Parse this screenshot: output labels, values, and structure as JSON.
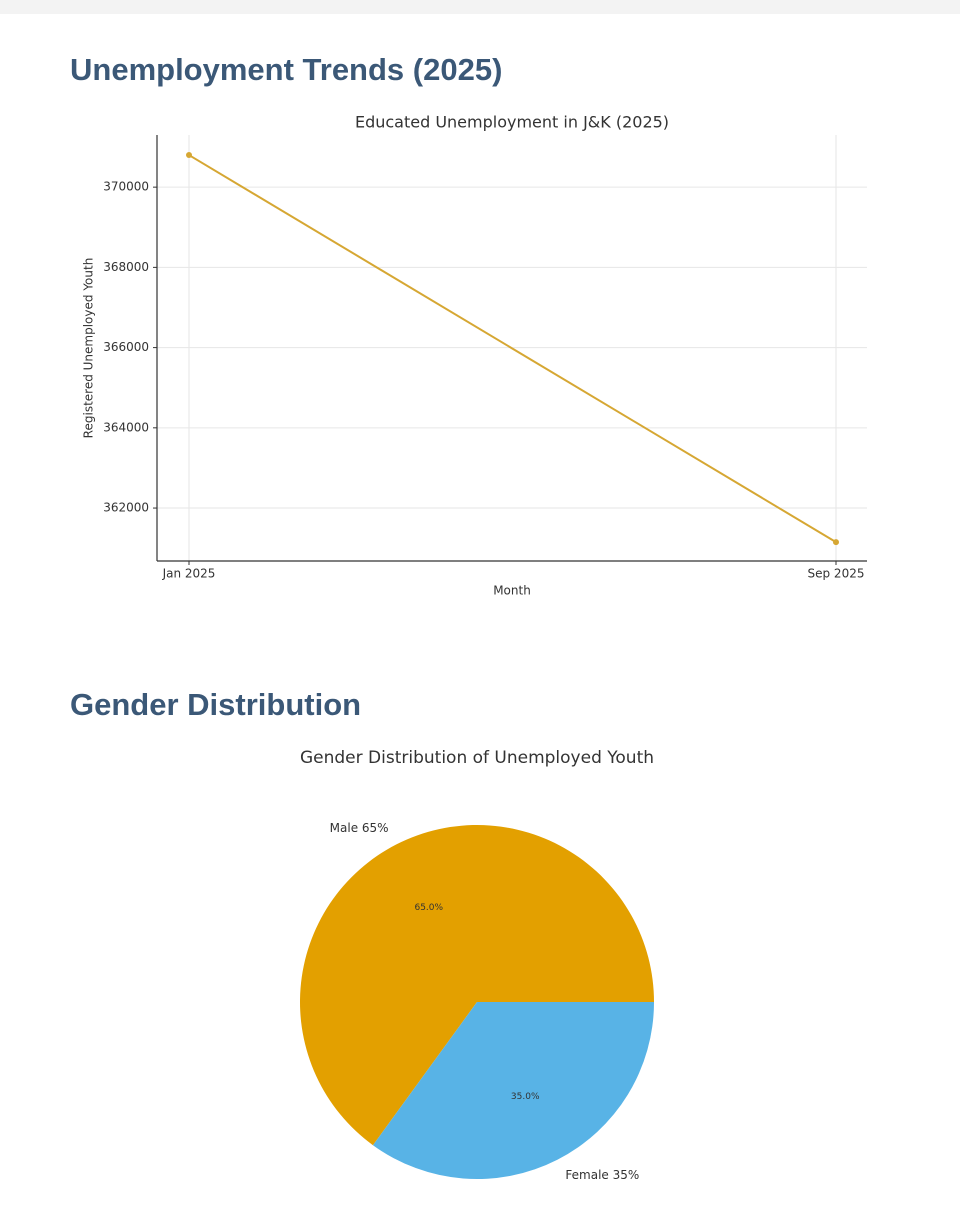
{
  "headings": [
    "Unemployment Trends (2025)",
    "Gender Distribution"
  ],
  "chart_data": [
    {
      "type": "line",
      "title": "Educated Unemployment in J&K (2025)",
      "x_label": "Month",
      "y_label": "Registered Unemployed Youth",
      "categories": [
        "Jan 2025",
        "Sep 2025"
      ],
      "series": [
        {
          "name": "Registered Unemployed Youth",
          "color": "#d6a733",
          "values": [
            370800,
            361150
          ]
        }
      ],
      "ylim": [
        360680,
        371300
      ],
      "yticks": [
        362000,
        364000,
        366000,
        368000,
        370000
      ],
      "grid": true
    },
    {
      "type": "pie",
      "title": "Gender Distribution of Unemployed Youth",
      "categories": [
        "Male 65%",
        "Female 35%"
      ],
      "values": [
        65,
        35
      ],
      "value_labels": [
        "65.0%",
        "35.0%"
      ],
      "colors": [
        "#e3a000",
        "#58b3e6"
      ]
    }
  ]
}
